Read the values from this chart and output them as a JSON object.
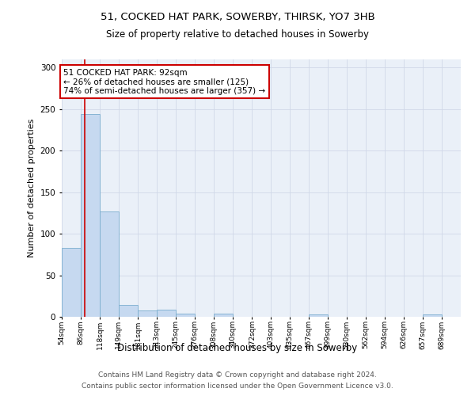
{
  "title1": "51, COCKED HAT PARK, SOWERBY, THIRSK, YO7 3HB",
  "title2": "Size of property relative to detached houses in Sowerby",
  "xlabel": "Distribution of detached houses by size in Sowerby",
  "ylabel": "Number of detached properties",
  "bin_labels": [
    "54sqm",
    "86sqm",
    "118sqm",
    "149sqm",
    "181sqm",
    "213sqm",
    "245sqm",
    "276sqm",
    "308sqm",
    "340sqm",
    "372sqm",
    "403sqm",
    "435sqm",
    "467sqm",
    "499sqm",
    "530sqm",
    "562sqm",
    "594sqm",
    "626sqm",
    "657sqm",
    "689sqm"
  ],
  "bar_heights": [
    83,
    244,
    127,
    14,
    8,
    9,
    4,
    0,
    4,
    0,
    0,
    0,
    0,
    3,
    0,
    0,
    0,
    0,
    0,
    3,
    0
  ],
  "bar_color": "#c6d9f0",
  "bar_edge_color": "#7aadcf",
  "property_line_x": 92,
  "bin_edges": [
    54,
    86,
    118,
    149,
    181,
    213,
    245,
    276,
    308,
    340,
    372,
    403,
    435,
    467,
    499,
    530,
    562,
    594,
    626,
    657,
    689,
    721
  ],
  "annotation_line1": "51 COCKED HAT PARK: 92sqm",
  "annotation_line2": "← 26% of detached houses are smaller (125)",
  "annotation_line3": "74% of semi-detached houses are larger (357) →",
  "annotation_box_color": "#ffffff",
  "annotation_box_edge": "#cc0000",
  "property_line_color": "#cc0000",
  "ylim": [
    0,
    310
  ],
  "yticks": [
    0,
    50,
    100,
    150,
    200,
    250,
    300
  ],
  "grid_color": "#d0d8e8",
  "background_color": "#eaf0f8",
  "footer1": "Contains HM Land Registry data © Crown copyright and database right 2024.",
  "footer2": "Contains public sector information licensed under the Open Government Licence v3.0."
}
